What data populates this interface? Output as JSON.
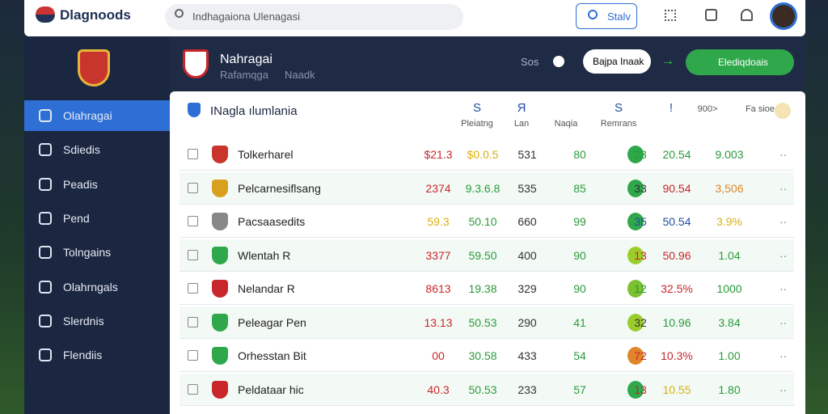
{
  "header": {
    "logo": "Dlagnoods",
    "search": "Indhagaiona Ulenagasi",
    "search_button": "Stalv"
  },
  "sidebar": [
    "Olahragai",
    "Sdiedis",
    "Peadis",
    "Pend",
    "Tolngains",
    "Olahrngals",
    "Slerdnis",
    "Flendiis"
  ],
  "topbar": {
    "title": "Nahragai",
    "subtitle": "Rafamqga",
    "subtitle2": "Naadk",
    "label": "Sos",
    "button": "Bajpa Inaak",
    "action": "Elediqdoais"
  },
  "table": {
    "title": "INagla ılumlania",
    "columns": [
      {
        "icon": "S",
        "label": "Pleiatng"
      },
      {
        "icon": "Я",
        "label": "Lan"
      },
      {
        "icon": "",
        "label": "Naqia"
      },
      {
        "icon": "S",
        "label": "Remrans"
      },
      {
        "icon": "!",
        "label": ""
      },
      {
        "icon": "",
        "label": "900>"
      },
      {
        "icon": "",
        "label": "Fa sioe"
      }
    ],
    "rows": [
      [
        "Tolkerharel",
        "$21.3",
        "$0.0.5",
        "531",
        "80",
        "23",
        "20.54",
        "9.003"
      ],
      [
        "Pelcarnesiflsang",
        "2374",
        "9.3.6.8",
        "535",
        "85",
        "33",
        "90.54",
        "3,506"
      ],
      [
        "Pacsaasedits",
        "59.3",
        "50.10",
        "660",
        "99",
        "35",
        "50.54",
        "3.9%"
      ],
      [
        "Wlentah R",
        "3377",
        "59.50",
        "400",
        "90",
        "13",
        "50.96",
        "1.04"
      ],
      [
        "Nelandar R",
        "8613",
        "19.38",
        "329",
        "90",
        "12",
        "32.5%",
        "1000"
      ],
      [
        "Peleagar Pen",
        "13.13",
        "50.53",
        "290",
        "41",
        "32",
        "10.96",
        "3.84"
      ],
      [
        "Orhesstan Bit",
        "00",
        "30.58",
        "433",
        "54",
        "72",
        "10.3%",
        "1.00"
      ],
      [
        "Peldataar hic",
        "40.3",
        "50.53",
        "233",
        "57",
        "13",
        "10.55",
        "1.80"
      ]
    ]
  }
}
